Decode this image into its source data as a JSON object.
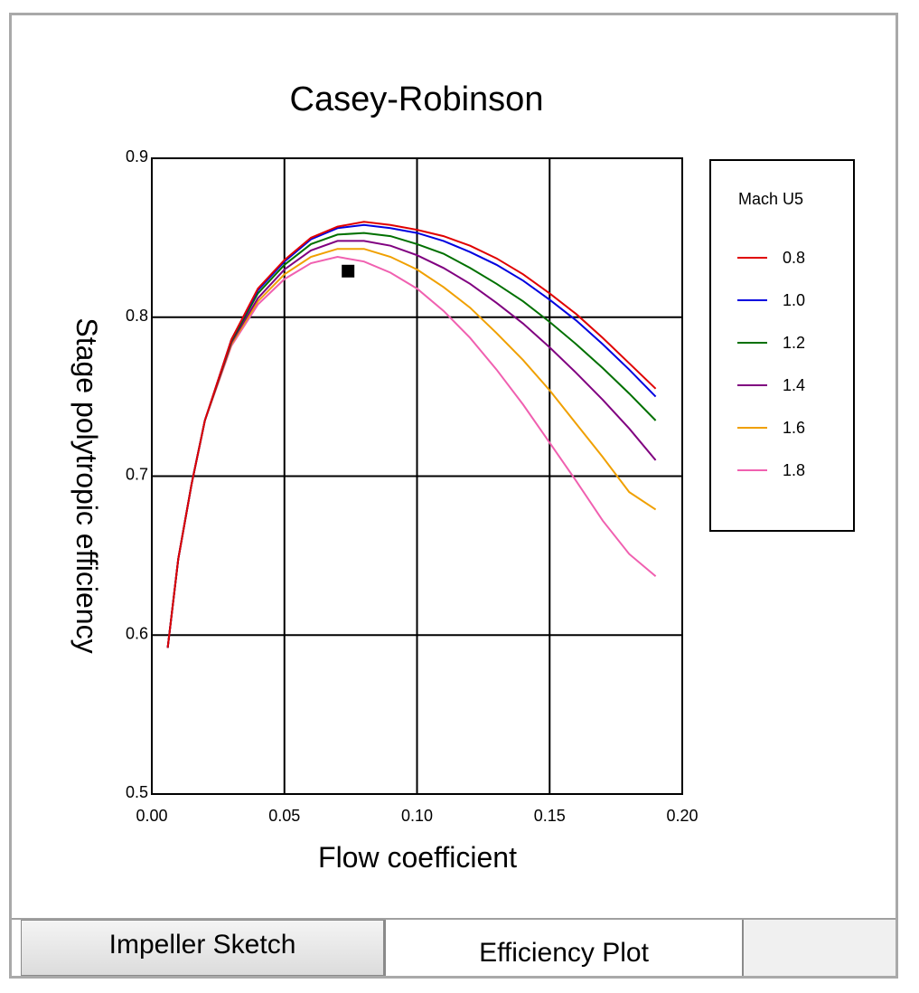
{
  "chart_data": {
    "type": "line",
    "title": "Casey-Robinson",
    "xlabel": "Flow coefficient",
    "ylabel": "Stage polytropic efficiency",
    "xlim": [
      0.0,
      0.2
    ],
    "ylim": [
      0.5,
      0.9
    ],
    "x_ticks": [
      "0.00",
      "0.05",
      "0.10",
      "0.15",
      "0.20"
    ],
    "y_ticks": [
      "0.5",
      "0.6",
      "0.7",
      "0.8",
      "0.9"
    ],
    "grid": true,
    "legend_title": "Mach U5",
    "legend_position": "right",
    "series": [
      {
        "name": "0.8",
        "color": "#e00000",
        "points": [
          [
            0.006,
            0.592
          ],
          [
            0.01,
            0.648
          ],
          [
            0.015,
            0.695
          ],
          [
            0.02,
            0.735
          ],
          [
            0.03,
            0.786
          ],
          [
            0.04,
            0.818
          ],
          [
            0.05,
            0.836
          ],
          [
            0.06,
            0.85
          ],
          [
            0.07,
            0.857
          ],
          [
            0.08,
            0.86
          ],
          [
            0.09,
            0.858
          ],
          [
            0.1,
            0.855
          ],
          [
            0.11,
            0.851
          ],
          [
            0.12,
            0.845
          ],
          [
            0.13,
            0.837
          ],
          [
            0.14,
            0.827
          ],
          [
            0.15,
            0.815
          ],
          [
            0.16,
            0.802
          ],
          [
            0.17,
            0.787
          ],
          [
            0.18,
            0.771
          ],
          [
            0.19,
            0.755
          ]
        ]
      },
      {
        "name": "1.0",
        "color": "#0000e0",
        "points": [
          [
            0.006,
            0.592
          ],
          [
            0.01,
            0.648
          ],
          [
            0.015,
            0.695
          ],
          [
            0.02,
            0.735
          ],
          [
            0.03,
            0.786
          ],
          [
            0.04,
            0.817
          ],
          [
            0.05,
            0.835
          ],
          [
            0.06,
            0.849
          ],
          [
            0.07,
            0.856
          ],
          [
            0.08,
            0.858
          ],
          [
            0.09,
            0.856
          ],
          [
            0.1,
            0.853
          ],
          [
            0.11,
            0.848
          ],
          [
            0.12,
            0.841
          ],
          [
            0.13,
            0.833
          ],
          [
            0.14,
            0.823
          ],
          [
            0.15,
            0.811
          ],
          [
            0.16,
            0.798
          ],
          [
            0.17,
            0.783
          ],
          [
            0.18,
            0.767
          ],
          [
            0.19,
            0.75
          ]
        ]
      },
      {
        "name": "1.2",
        "color": "#007000",
        "points": [
          [
            0.006,
            0.592
          ],
          [
            0.01,
            0.648
          ],
          [
            0.015,
            0.695
          ],
          [
            0.02,
            0.735
          ],
          [
            0.03,
            0.785
          ],
          [
            0.04,
            0.815
          ],
          [
            0.05,
            0.833
          ],
          [
            0.06,
            0.846
          ],
          [
            0.07,
            0.852
          ],
          [
            0.08,
            0.853
          ],
          [
            0.09,
            0.851
          ],
          [
            0.1,
            0.846
          ],
          [
            0.11,
            0.84
          ],
          [
            0.12,
            0.831
          ],
          [
            0.13,
            0.821
          ],
          [
            0.14,
            0.81
          ],
          [
            0.15,
            0.797
          ],
          [
            0.16,
            0.783
          ],
          [
            0.17,
            0.768
          ],
          [
            0.18,
            0.752
          ],
          [
            0.19,
            0.735
          ]
        ]
      },
      {
        "name": "1.4",
        "color": "#800080",
        "points": [
          [
            0.006,
            0.592
          ],
          [
            0.01,
            0.648
          ],
          [
            0.015,
            0.695
          ],
          [
            0.02,
            0.735
          ],
          [
            0.03,
            0.784
          ],
          [
            0.04,
            0.812
          ],
          [
            0.05,
            0.83
          ],
          [
            0.06,
            0.842
          ],
          [
            0.07,
            0.848
          ],
          [
            0.08,
            0.848
          ],
          [
            0.09,
            0.845
          ],
          [
            0.1,
            0.839
          ],
          [
            0.11,
            0.831
          ],
          [
            0.12,
            0.821
          ],
          [
            0.13,
            0.809
          ],
          [
            0.14,
            0.796
          ],
          [
            0.15,
            0.781
          ],
          [
            0.16,
            0.765
          ],
          [
            0.17,
            0.748
          ],
          [
            0.18,
            0.73
          ],
          [
            0.19,
            0.71
          ]
        ]
      },
      {
        "name": "1.6",
        "color": "#f0a000",
        "points": [
          [
            0.006,
            0.592
          ],
          [
            0.01,
            0.648
          ],
          [
            0.015,
            0.695
          ],
          [
            0.02,
            0.735
          ],
          [
            0.03,
            0.783
          ],
          [
            0.04,
            0.81
          ],
          [
            0.05,
            0.827
          ],
          [
            0.06,
            0.838
          ],
          [
            0.07,
            0.843
          ],
          [
            0.08,
            0.843
          ],
          [
            0.09,
            0.838
          ],
          [
            0.1,
            0.83
          ],
          [
            0.11,
            0.819
          ],
          [
            0.12,
            0.806
          ],
          [
            0.13,
            0.79
          ],
          [
            0.14,
            0.773
          ],
          [
            0.15,
            0.754
          ],
          [
            0.16,
            0.733
          ],
          [
            0.17,
            0.712
          ],
          [
            0.18,
            0.69
          ],
          [
            0.19,
            0.679
          ]
        ]
      },
      {
        "name": "1.8",
        "color": "#f060b0",
        "points": [
          [
            0.006,
            0.592
          ],
          [
            0.01,
            0.648
          ],
          [
            0.015,
            0.695
          ],
          [
            0.02,
            0.735
          ],
          [
            0.03,
            0.782
          ],
          [
            0.04,
            0.808
          ],
          [
            0.05,
            0.824
          ],
          [
            0.06,
            0.834
          ],
          [
            0.07,
            0.838
          ],
          [
            0.08,
            0.835
          ],
          [
            0.09,
            0.828
          ],
          [
            0.1,
            0.818
          ],
          [
            0.11,
            0.804
          ],
          [
            0.12,
            0.787
          ],
          [
            0.13,
            0.767
          ],
          [
            0.14,
            0.745
          ],
          [
            0.15,
            0.721
          ],
          [
            0.16,
            0.697
          ],
          [
            0.17,
            0.672
          ],
          [
            0.18,
            0.651
          ],
          [
            0.19,
            0.637
          ]
        ]
      }
    ],
    "design_point": {
      "x": 0.074,
      "y": 0.829
    }
  },
  "tabs": {
    "impeller_sketch": "Impeller Sketch",
    "efficiency_plot": "Efficiency Plot"
  }
}
